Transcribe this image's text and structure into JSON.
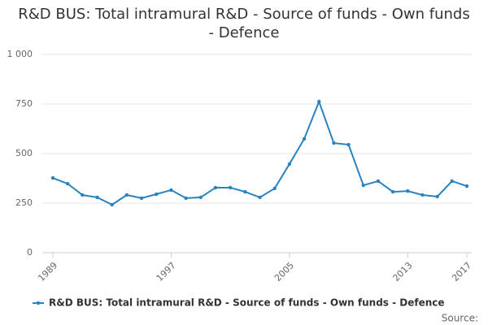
{
  "chart_data": {
    "type": "line",
    "title": "R&D BUS: Total intramural R&D - Source of funds - Own funds - Defence",
    "x": [
      1989,
      1990,
      1991,
      1992,
      1993,
      1994,
      1995,
      1996,
      1997,
      1998,
      1999,
      2000,
      2001,
      2002,
      2003,
      2004,
      2005,
      2006,
      2007,
      2008,
      2009,
      2010,
      2011,
      2012,
      2013,
      2014,
      2015,
      2016,
      2017
    ],
    "series": [
      {
        "name": "R&D BUS: Total intramural R&D - Source of funds - Own funds - Defence",
        "color": "#2a82bf",
        "values": [
          377,
          348,
          291,
          279,
          242,
          291,
          275,
          295,
          316,
          275,
          279,
          328,
          328,
          307,
          279,
          324,
          447,
          574,
          762,
          553,
          545,
          340,
          361,
          307,
          311,
          291,
          283,
          361,
          336
        ]
      }
    ],
    "xlim": [
      1989,
      2017
    ],
    "xticks": [
      1989,
      1997,
      2005,
      2013,
      2017
    ],
    "ylim": [
      0,
      1000
    ],
    "yticks": [
      0,
      250,
      500,
      750,
      {
        "value": 1000,
        "label": "1 000"
      }
    ],
    "grid": true,
    "legend": "bottom",
    "source": "Source:"
  }
}
